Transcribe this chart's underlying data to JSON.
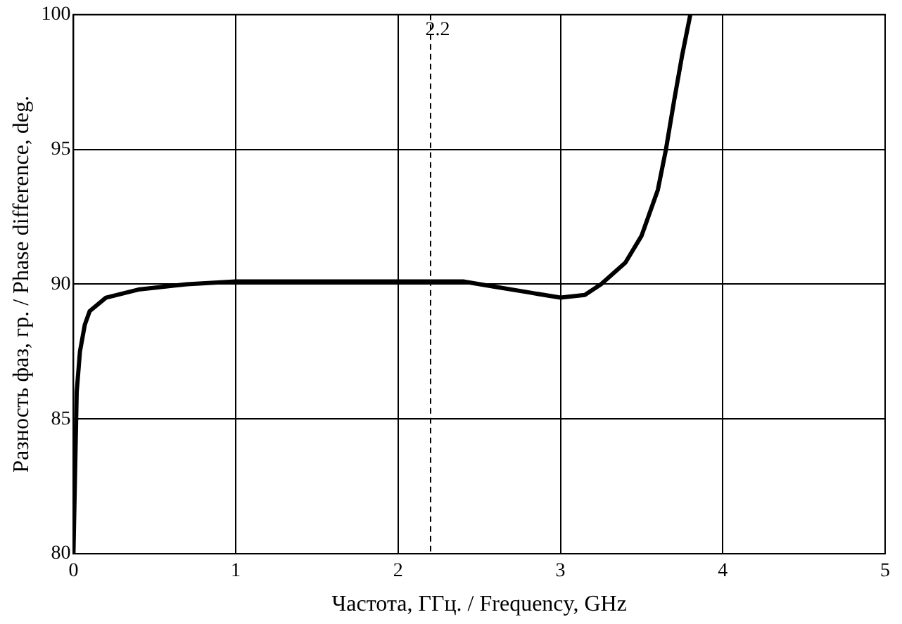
{
  "chart_data": {
    "type": "line",
    "xlabel": "Частота, ГГц. / Frequency, GHz",
    "ylabel": "Разность фаз, гр. / Phase difference, deg.",
    "x": [
      0,
      0.01,
      0.02,
      0.04,
      0.07,
      0.1,
      0.2,
      0.4,
      0.7,
      1.0,
      1.5,
      2.0,
      2.4,
      2.6,
      2.8,
      3.0,
      3.15,
      3.25,
      3.4,
      3.5,
      3.6,
      3.65,
      3.7,
      3.75,
      3.8
    ],
    "series": [
      {
        "color": "#000000",
        "values": [
          80,
          83,
          86,
          87.5,
          88.5,
          89,
          89.5,
          89.8,
          90.0,
          90.1,
          90.1,
          90.1,
          90.1,
          89.9,
          89.7,
          89.5,
          89.6,
          90.0,
          90.8,
          91.8,
          93.5,
          95,
          96.8,
          98.5,
          100
        ]
      }
    ],
    "xlim": [
      0,
      5
    ],
    "xticks": [
      0,
      1,
      2,
      3,
      4,
      5
    ],
    "ylim": [
      80,
      100
    ],
    "yticks": [
      80,
      85,
      90,
      95,
      100
    ],
    "grid": true,
    "legend": false,
    "marker": "none",
    "line_style": "solid",
    "ref_lines": [
      {
        "axis": "x",
        "value": 2.2,
        "label": "2.2",
        "line_style": "dashed",
        "color": "#000000"
      }
    ]
  }
}
